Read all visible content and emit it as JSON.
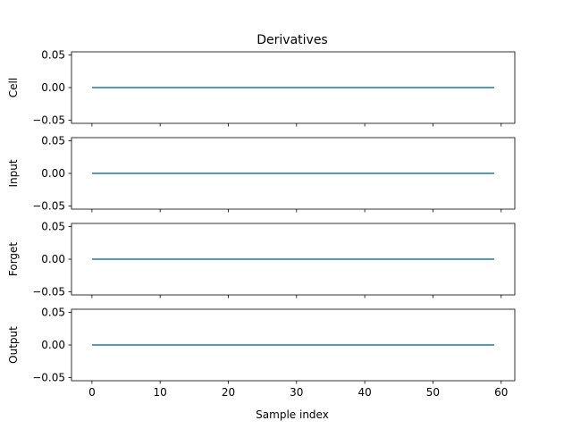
{
  "chart_data": {
    "type": "line",
    "title": "Derivatives",
    "xlabel": "Sample index",
    "x_ticks": [
      0,
      10,
      20,
      30,
      40,
      50,
      60
    ],
    "y_ticks": [
      -0.05,
      0.0,
      0.05
    ],
    "xlim": [
      -3,
      62
    ],
    "ylim": [
      -0.055,
      0.055
    ],
    "line_color": "#1f77b4",
    "grid": false,
    "subplots": [
      {
        "ylabel": "Cell",
        "x": [
          0,
          59
        ],
        "y": [
          0,
          0
        ]
      },
      {
        "ylabel": "Input",
        "x": [
          0,
          59
        ],
        "y": [
          0,
          0
        ]
      },
      {
        "ylabel": "Forget",
        "x": [
          0,
          59
        ],
        "y": [
          0,
          0
        ]
      },
      {
        "ylabel": "Output",
        "x": [
          0,
          59
        ],
        "y": [
          0,
          0
        ]
      }
    ]
  }
}
